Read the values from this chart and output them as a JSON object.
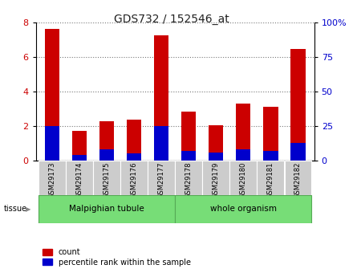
{
  "title": "GDS732 / 152546_at",
  "samples": [
    "GSM29173",
    "GSM29174",
    "GSM29175",
    "GSM29176",
    "GSM29177",
    "GSM29178",
    "GSM29179",
    "GSM29180",
    "GSM29181",
    "GSM29182"
  ],
  "count_values": [
    7.6,
    1.7,
    2.3,
    2.35,
    7.25,
    2.85,
    2.05,
    3.3,
    3.1,
    6.45
  ],
  "percentile_values": [
    25,
    4,
    8,
    5,
    25,
    7,
    6,
    8,
    7,
    13
  ],
  "tissue_split": 5,
  "group_labels": [
    "Malpighian tubule",
    "whole organism"
  ],
  "group_color": "#77dd77",
  "bar_color_count": "#cc0000",
  "bar_color_percentile": "#0000cc",
  "sample_box_color": "#cccccc",
  "ylim_left": [
    0,
    8
  ],
  "ylim_right": [
    0,
    100
  ],
  "yticks_left": [
    0,
    2,
    4,
    6,
    8
  ],
  "yticks_right": [
    0,
    25,
    50,
    75,
    100
  ],
  "ytick_right_labels": [
    "0",
    "25",
    "50",
    "75",
    "100%"
  ],
  "ylabel_left_color": "#cc0000",
  "ylabel_right_color": "#0000cc",
  "legend_count_label": "count",
  "legend_percentile_label": "percentile rank within the sample",
  "tissue_label": "tissue",
  "background_color": "#ffffff",
  "bar_width": 0.55,
  "grid_style": "dotted",
  "grid_color": "#555555",
  "title_fontsize": 10,
  "tick_fontsize": 8,
  "label_fontsize": 7
}
